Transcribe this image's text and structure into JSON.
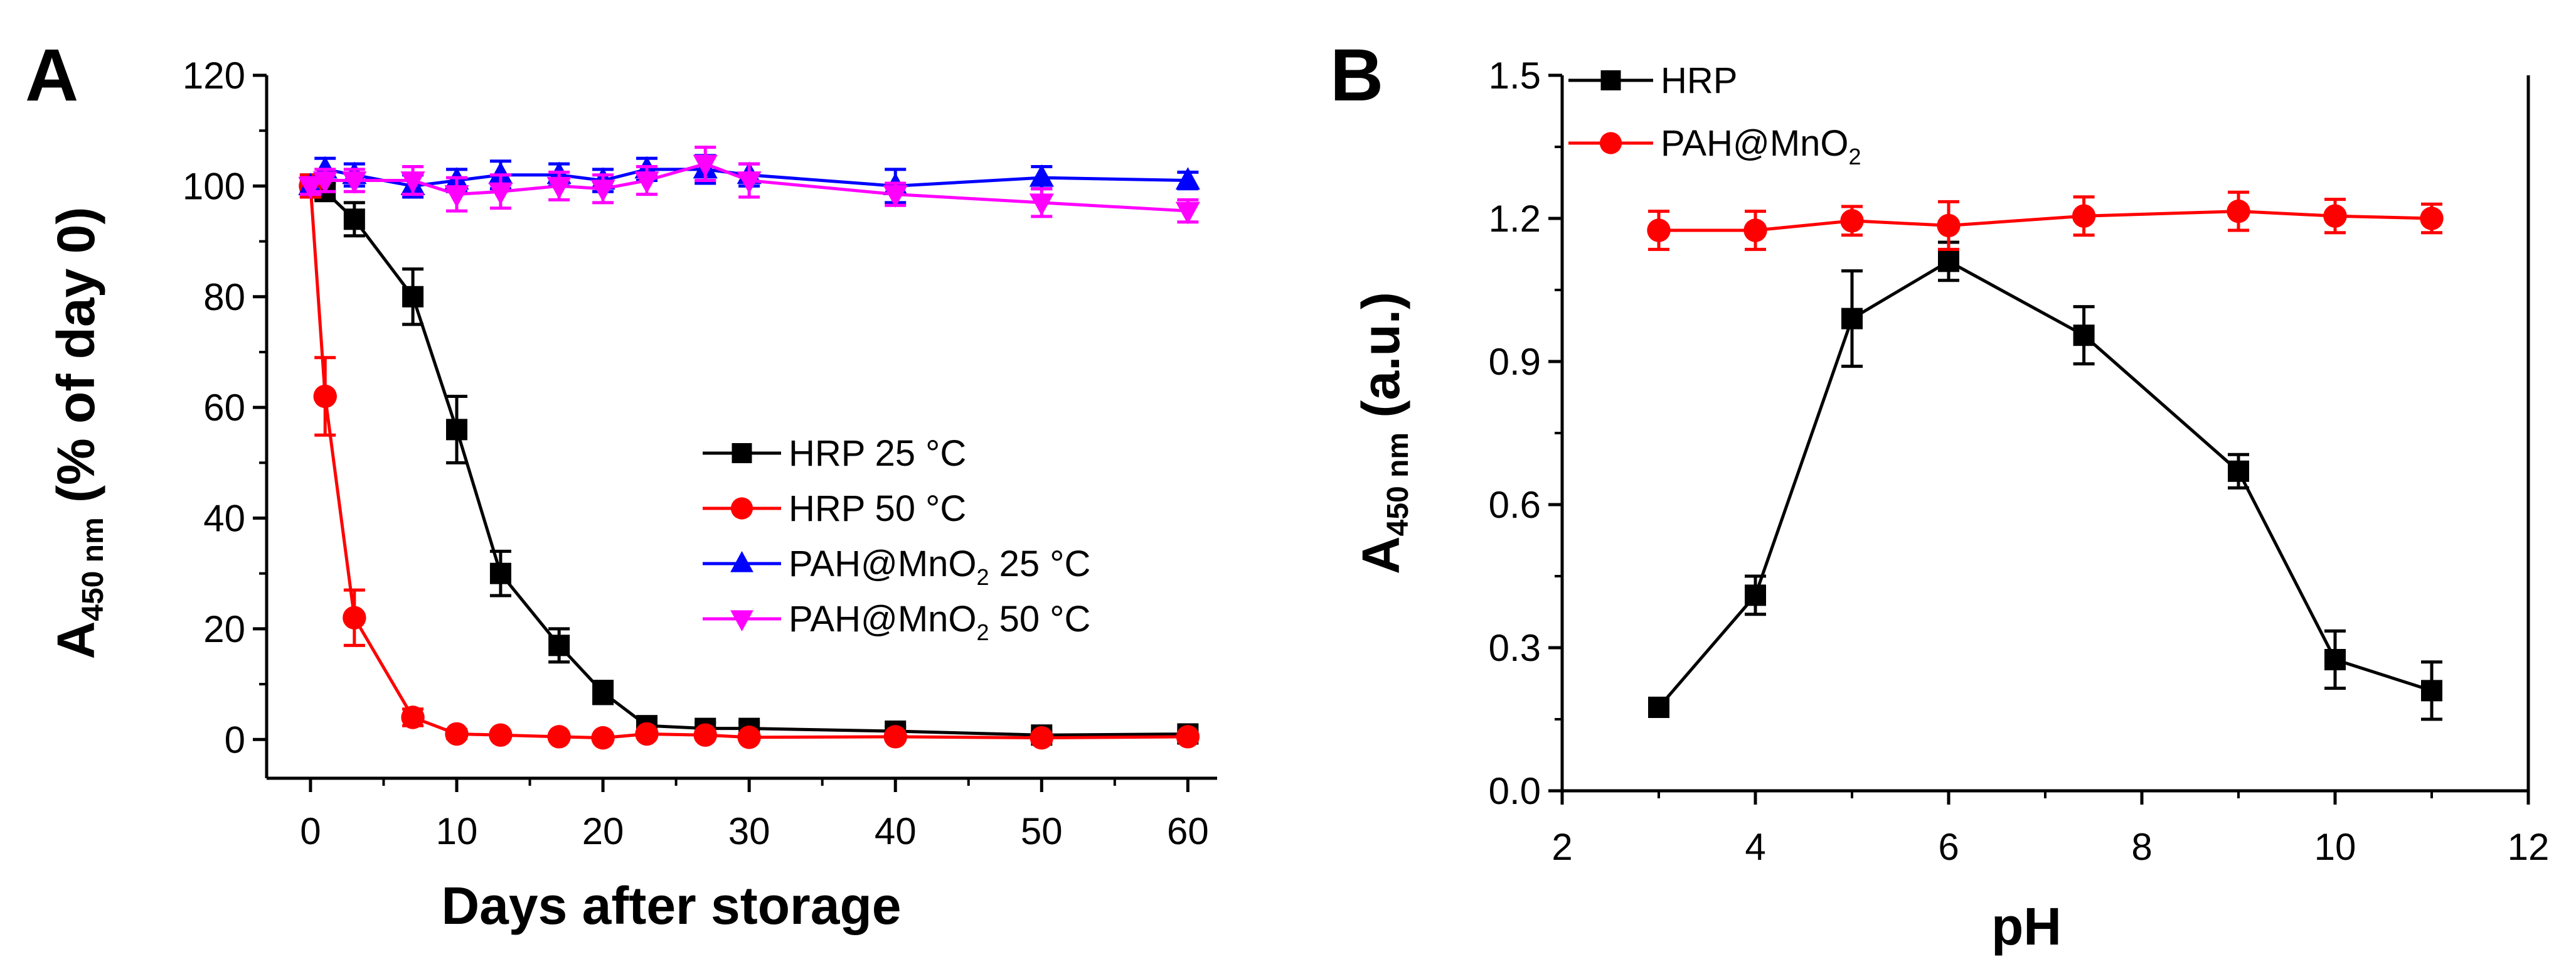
{
  "chart_data": [
    {
      "type": "line",
      "panel": "A",
      "xlabel": "Days after storage",
      "ylabel": {
        "main": "A",
        "sub": "450 nm",
        "rest": " (% of day 0)"
      },
      "xlim": [
        -3,
        62
      ],
      "ylim": [
        -7,
        120
      ],
      "xticks": [
        0,
        10,
        20,
        30,
        40,
        50,
        60
      ],
      "yticks": [
        0,
        20,
        40,
        60,
        80,
        100,
        120
      ],
      "grid": false,
      "legend_position": "center-right",
      "series": [
        {
          "name": "HRP 25 °C",
          "name_main": "HRP 25 °C",
          "name_sub": "",
          "name_tail": "",
          "color": "#000000",
          "marker": "square",
          "x": [
            0,
            1,
            3,
            7,
            10,
            13,
            17,
            20,
            23,
            27,
            30,
            40,
            50,
            60
          ],
          "y": [
            100,
            99,
            94,
            80,
            56,
            30,
            17,
            8.5,
            2.5,
            2,
            2,
            1.5,
            0.8,
            1
          ],
          "err": [
            2,
            1.5,
            3,
            5,
            6,
            4,
            3,
            2,
            1,
            1,
            1,
            0.8,
            0.6,
            0.6
          ]
        },
        {
          "name": "HRP 50 °C",
          "name_main": "HRP 50 °C",
          "name_sub": "",
          "name_tail": "",
          "color": "#ff0000",
          "marker": "circle",
          "x": [
            0,
            1,
            3,
            7,
            10,
            13,
            17,
            20,
            23,
            27,
            30,
            40,
            50,
            60
          ],
          "y": [
            100,
            62,
            22,
            4,
            1,
            0.8,
            0.5,
            0.3,
            1,
            0.8,
            0.4,
            0.5,
            0.3,
            0.5
          ],
          "err": [
            2,
            7,
            5,
            1.5,
            0.8,
            0.5,
            0.5,
            0.5,
            0.5,
            0.5,
            0.5,
            0.5,
            0.5,
            0.5
          ]
        },
        {
          "name": "PAH@MnO2 25 °C",
          "name_main": "PAH@MnO",
          "name_sub": "2",
          "name_tail": " 25 °C",
          "color": "#0000ff",
          "marker": "triangle-up",
          "x": [
            0,
            1,
            3,
            7,
            10,
            13,
            17,
            20,
            23,
            27,
            30,
            40,
            50,
            60
          ],
          "y": [
            100,
            103,
            102,
            100,
            101,
            102,
            102,
            101,
            103,
            103,
            102,
            100,
            101.5,
            101
          ],
          "err": [
            1.5,
            2,
            2,
            2,
            2,
            2.5,
            2,
            2,
            2,
            2.5,
            2,
            3,
            2,
            1.5
          ]
        },
        {
          "name": "PAH@MnO2 50 °C",
          "name_main": "PAH@MnO",
          "name_sub": "2",
          "name_tail": " 50 °C",
          "color": "#ff00ff",
          "marker": "triangle-down",
          "x": [
            0,
            1,
            3,
            7,
            10,
            13,
            17,
            20,
            23,
            27,
            30,
            40,
            50,
            60
          ],
          "y": [
            100,
            101,
            101,
            101,
            98.5,
            99,
            100,
            99.5,
            101,
            104,
            101,
            98.5,
            97,
            95.5
          ],
          "err": [
            1.5,
            2,
            2,
            2.5,
            3,
            3,
            2.5,
            2.5,
            2.5,
            3,
            3,
            2,
            2.5,
            2
          ]
        }
      ]
    },
    {
      "type": "line",
      "panel": "B",
      "xlabel": "pH",
      "ylabel": {
        "main": "A",
        "sub": "450 nm",
        "rest": " (a.u.)"
      },
      "xlim": [
        2,
        12
      ],
      "ylim": [
        0,
        1.5
      ],
      "xticks": [
        2,
        4,
        6,
        8,
        10,
        12
      ],
      "yticks": [
        0.0,
        0.3,
        0.6,
        0.9,
        1.2,
        1.5
      ],
      "ytick_labels": [
        "0.0",
        "0.3",
        "0.6",
        "0.9",
        "1.2",
        "1.5"
      ],
      "grid": false,
      "legend_position": "top-left",
      "series": [
        {
          "name": "HRP",
          "name_main": "HRP",
          "name_sub": "",
          "name_tail": "",
          "color": "#000000",
          "marker": "square",
          "x": [
            3,
            4,
            5,
            6,
            7.4,
            9,
            10,
            11
          ],
          "y": [
            0.175,
            0.41,
            0.99,
            1.11,
            0.955,
            0.67,
            0.275,
            0.21
          ],
          "err": [
            0.015,
            0.04,
            0.1,
            0.04,
            0.06,
            0.035,
            0.06,
            0.06
          ]
        },
        {
          "name": "PAH@MnO2",
          "name_main": "PAH@MnO",
          "name_sub": "2",
          "name_tail": "",
          "color": "#ff0000",
          "marker": "circle",
          "x": [
            3,
            4,
            5,
            6,
            7.4,
            9,
            10,
            11
          ],
          "y": [
            1.175,
            1.175,
            1.195,
            1.185,
            1.205,
            1.215,
            1.205,
            1.2
          ],
          "err": [
            0.04,
            0.04,
            0.03,
            0.05,
            0.04,
            0.04,
            0.035,
            0.03
          ]
        }
      ]
    }
  ]
}
